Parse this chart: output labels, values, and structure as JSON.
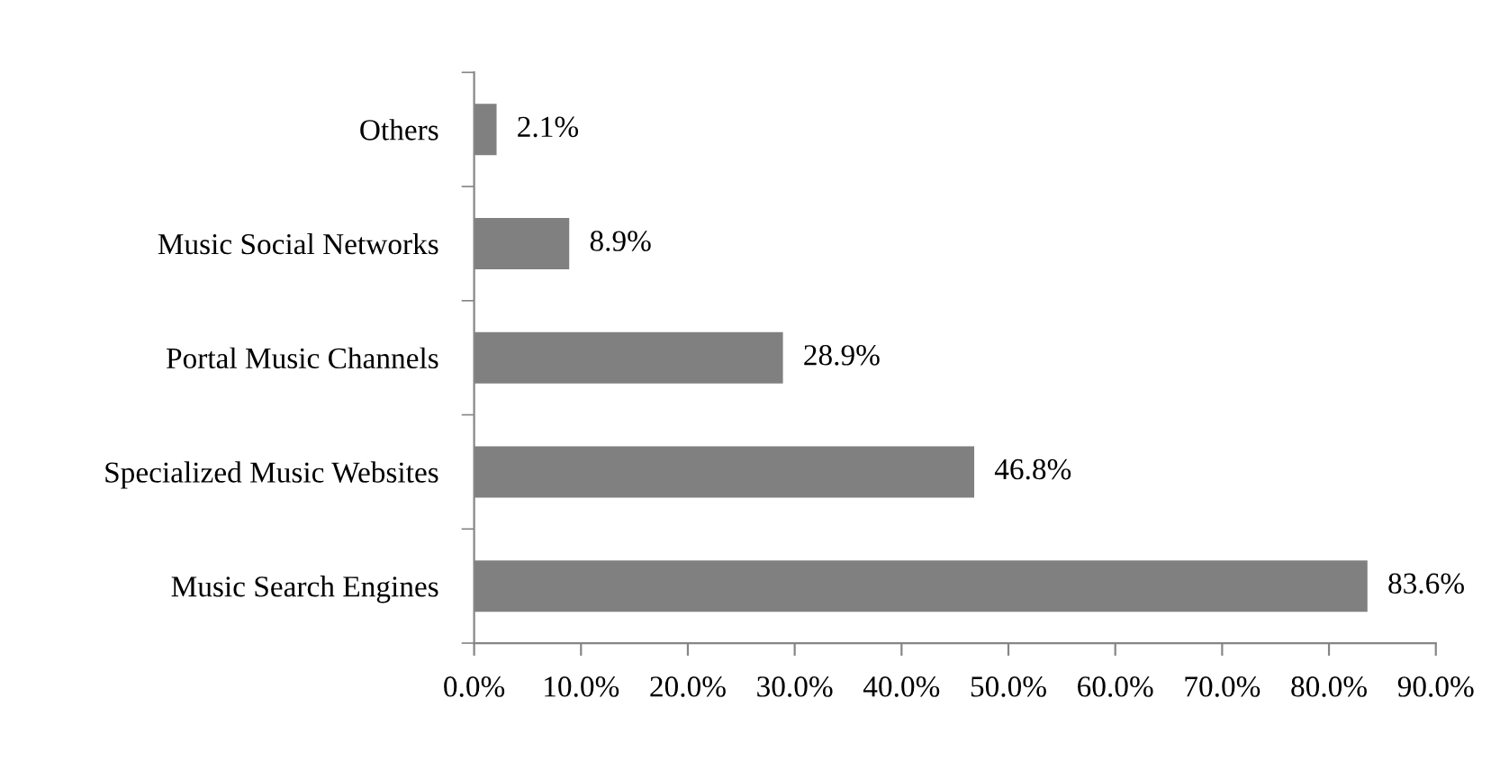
{
  "chart_data": {
    "type": "bar",
    "orientation": "horizontal",
    "categories": [
      "Others",
      "Music Social Networks",
      "Portal Music Channels",
      "Specialized Music Websites",
      "Music Search Engines"
    ],
    "values": [
      2.1,
      8.9,
      28.9,
      46.8,
      83.6
    ],
    "value_labels": [
      "2.1%",
      "8.9%",
      "28.9%",
      "46.8%",
      "83.6%"
    ],
    "color": "#808080",
    "xlim": [
      0,
      90
    ],
    "xticks": [
      {
        "value": 0,
        "label": "0.0%"
      },
      {
        "value": 10,
        "label": "10.0%"
      },
      {
        "value": 20,
        "label": "20.0%"
      },
      {
        "value": 30,
        "label": "30.0%"
      },
      {
        "value": 40,
        "label": "40.0%"
      },
      {
        "value": 50,
        "label": "50.0%"
      },
      {
        "value": 60,
        "label": "60.0%"
      },
      {
        "value": 70,
        "label": "70.0%"
      },
      {
        "value": 80,
        "label": "80.0%"
      },
      {
        "value": 90,
        "label": "90.0%"
      }
    ],
    "grid": false,
    "legend": false
  }
}
